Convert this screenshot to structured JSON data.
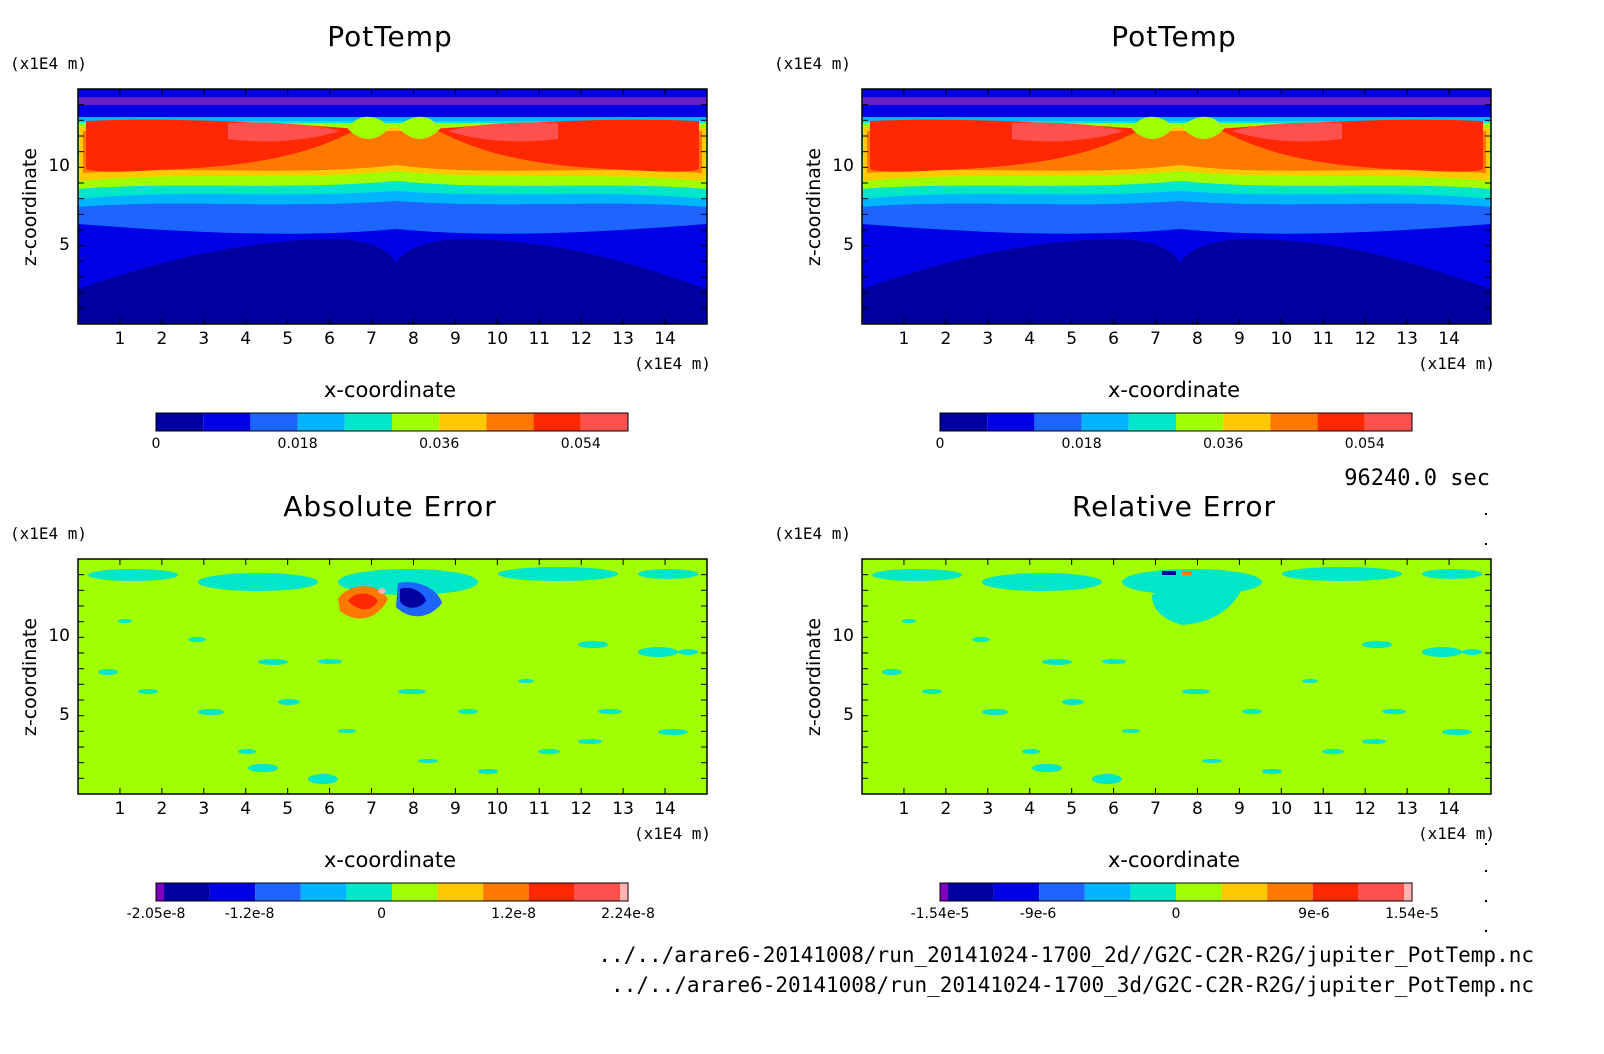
{
  "time_label": "96240.0 sec",
  "files": [
    "../../arare6-20141008/run_20141024-1700_2d//G2C-C2R-R2G/jupiter_PotTemp.nc",
    "../../arare6-20141008/run_20141024-1700_3d/G2C-C2R-R2G/jupiter_PotTemp.nc"
  ],
  "colors": {
    "pot": [
      "#0000a0",
      "#0000e6",
      "#1e64ff",
      "#00b4ff",
      "#00e6c8",
      "#a0ff00",
      "#ffc800",
      "#ff7800",
      "#ff2800",
      "#ff5050"
    ],
    "err": [
      "#8000c0",
      "#0000a0",
      "#0000e6",
      "#1e64ff",
      "#00b4ff",
      "#00e6c8",
      "#a0ff00",
      "#ffc800",
      "#ff7800",
      "#ff2800",
      "#ff5050",
      "#ffb4b4"
    ]
  },
  "chart_data": [
    {
      "type": "heatmap",
      "title": "PotTemp",
      "xlabel": "x-coordinate",
      "ylabel": "z-coordinate",
      "x_unit": "(x1E4 m)",
      "z_unit": "(x1E4 m)",
      "xlim": [
        0,
        15
      ],
      "zlim": [
        0,
        15
      ],
      "x_ticks": [
        "1",
        "2",
        "3",
        "4",
        "5",
        "6",
        "7",
        "8",
        "9",
        "10",
        "11",
        "12",
        "13",
        "14"
      ],
      "z_ticks": [
        "5",
        "10"
      ],
      "colorbar": {
        "ticks": [
          "0",
          "0.018",
          "0.036",
          "0.054"
        ],
        "range": [
          0,
          0.06
        ]
      }
    },
    {
      "type": "heatmap",
      "title": "PotTemp",
      "xlabel": "x-coordinate",
      "ylabel": "z-coordinate",
      "x_unit": "(x1E4 m)",
      "z_unit": "(x1E4 m)",
      "xlim": [
        0,
        15
      ],
      "zlim": [
        0,
        15
      ],
      "x_ticks": [
        "1",
        "2",
        "3",
        "4",
        "5",
        "6",
        "7",
        "8",
        "9",
        "10",
        "11",
        "12",
        "13",
        "14"
      ],
      "z_ticks": [
        "5",
        "10"
      ],
      "colorbar": {
        "ticks": [
          "0",
          "0.018",
          "0.036",
          "0.054"
        ],
        "range": [
          0,
          0.06
        ]
      }
    },
    {
      "type": "heatmap",
      "title": "Absolute Error",
      "xlabel": "x-coordinate",
      "ylabel": "z-coordinate",
      "x_unit": "(x1E4 m)",
      "z_unit": "(x1E4 m)",
      "xlim": [
        0,
        15
      ],
      "zlim": [
        0,
        15
      ],
      "x_ticks": [
        "1",
        "2",
        "3",
        "4",
        "5",
        "6",
        "7",
        "8",
        "9",
        "10",
        "11",
        "12",
        "13",
        "14"
      ],
      "z_ticks": [
        "5",
        "10"
      ],
      "colorbar": {
        "ticks": [
          "-2.05e-8",
          "-1.2e-8",
          "0",
          "1.2e-8",
          "2.24e-8"
        ],
        "range": [
          -2.05e-08,
          2.24e-08
        ]
      }
    },
    {
      "type": "heatmap",
      "title": "Relative Error",
      "xlabel": "x-coordinate",
      "ylabel": "z-coordinate",
      "x_unit": "(x1E4 m)",
      "z_unit": "(x1E4 m)",
      "xlim": [
        0,
        15
      ],
      "zlim": [
        0,
        15
      ],
      "x_ticks": [
        "1",
        "2",
        "3",
        "4",
        "5",
        "6",
        "7",
        "8",
        "9",
        "10",
        "11",
        "12",
        "13",
        "14"
      ],
      "z_ticks": [
        "5",
        "10"
      ],
      "colorbar": {
        "ticks": [
          "-1.54e-5",
          "-9e-6",
          "0",
          "9e-6",
          "1.54e-5"
        ],
        "range": [
          -1.54e-05,
          1.54e-05
        ]
      }
    }
  ]
}
